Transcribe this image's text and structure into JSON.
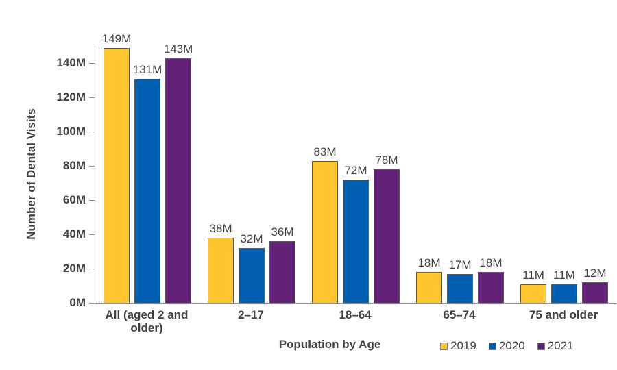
{
  "chart_data": {
    "type": "bar",
    "title": "",
    "xlabel": "Population by Age",
    "ylabel": "Number of Dental Visits",
    "categories": [
      "All (aged 2 and older)",
      "2–17",
      "18–64",
      "65–74",
      "75 and older"
    ],
    "series": [
      {
        "name": "2019",
        "color": "#FFC42E",
        "values": [
          149,
          38,
          83,
          18,
          11
        ],
        "labels": [
          "149M",
          "38M",
          "83M",
          "18M",
          "11M"
        ]
      },
      {
        "name": "2020",
        "color": "#005FB0",
        "values": [
          131,
          32,
          72,
          17,
          11
        ],
        "labels": [
          "131M",
          "32M",
          "72M",
          "17M",
          "11M"
        ]
      },
      {
        "name": "2021",
        "color": "#622076",
        "values": [
          143,
          36,
          78,
          18,
          12
        ],
        "labels": [
          "143M",
          "36M",
          "78M",
          "18M",
          "12M"
        ]
      }
    ],
    "y_ticks": [
      0,
      20,
      40,
      60,
      80,
      100,
      120,
      140
    ],
    "y_tick_labels": [
      "0M",
      "20M",
      "40M",
      "60M",
      "80M",
      "100M",
      "120M",
      "140M"
    ],
    "ylim": [
      0,
      150
    ],
    "grid": "off",
    "legend_position": "bottom-right",
    "colors": {
      "bar_border": "#595959",
      "axis_line": "#8C8C8C",
      "text": "#404040"
    }
  }
}
